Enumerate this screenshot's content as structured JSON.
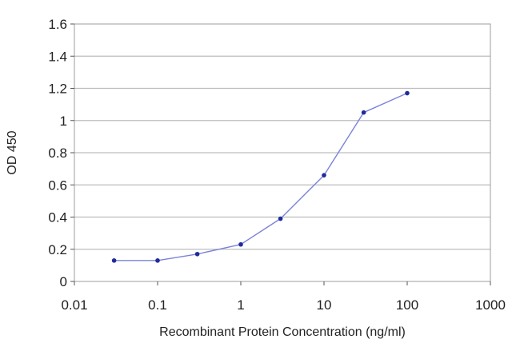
{
  "chart_data": {
    "type": "line",
    "title": "",
    "xlabel": "Recombinant Protein Concentration (ng/ml)",
    "ylabel": "OD 450",
    "x_scale": "log",
    "xlim": [
      0.01,
      1000
    ],
    "ylim": [
      0,
      1.6
    ],
    "x_ticks": [
      0.01,
      0.1,
      1,
      10,
      100,
      1000
    ],
    "x_tick_labels": [
      "0.01",
      "0.1",
      "1",
      "10",
      "100",
      "1000"
    ],
    "y_ticks": [
      0,
      0.2,
      0.4,
      0.6,
      0.8,
      1,
      1.2,
      1.4,
      1.6
    ],
    "y_tick_labels": [
      "0",
      "0.2",
      "0.4",
      "0.6",
      "0.8",
      "1",
      "1.2",
      "1.4",
      "1.6"
    ],
    "grid": "horizontal",
    "series": [
      {
        "x": [
          0.03,
          0.1,
          0.3,
          1,
          3,
          10,
          30,
          100
        ],
        "y": [
          0.13,
          0.13,
          0.17,
          0.23,
          0.39,
          0.66,
          1.05,
          1.17
        ]
      }
    ],
    "colors": {
      "line": "#7b83d9",
      "marker": "#1f2a9e",
      "grid": "#bdbdbd",
      "plot_border": "#9e9e9e"
    }
  }
}
